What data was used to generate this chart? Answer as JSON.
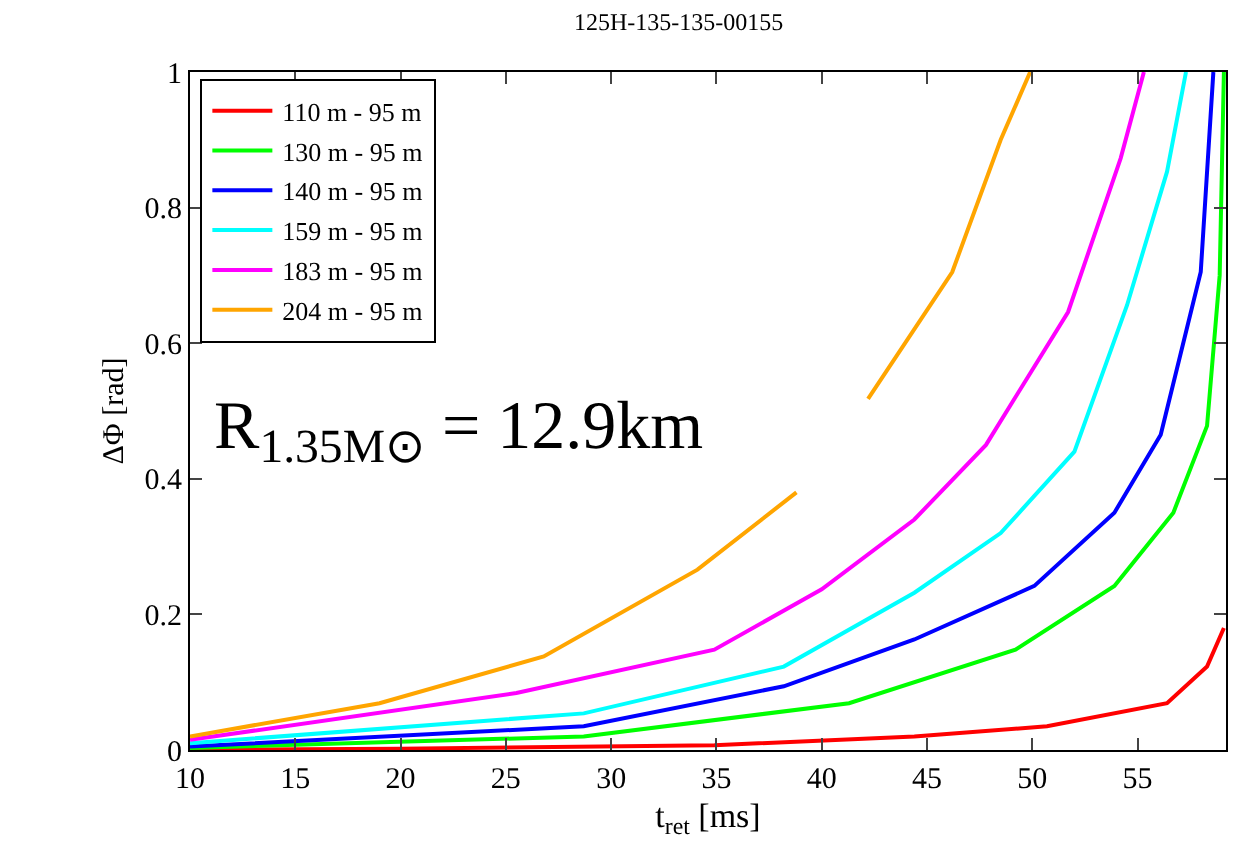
{
  "chart_data": {
    "type": "line",
    "title": "125H-135-135-00155",
    "xlabel": "t$_{ret}$ [ms]",
    "ylabel": "ΔΦ [rad]",
    "annotations": [
      "R$_{1.35M⊙}$ = 12.9km"
    ],
    "xlim": [
      10,
      59.2
    ],
    "xticks": [
      10,
      15,
      20,
      25,
      30,
      35,
      40,
      45,
      50,
      55
    ],
    "ylim": [
      0,
      1
    ],
    "yticks": [
      0,
      0.2,
      0.4,
      0.6,
      0.8,
      1
    ],
    "legend": "top left",
    "marker": "none",
    "line_style": "solid",
    "series": [
      {
        "name": "110 m - 95 m",
        "color": "#ff0000",
        "x": [
          10,
          20,
          34.9,
          44.4,
          50.7,
          56.4,
          58.3,
          59.1
        ],
        "values": [
          0,
          0.002,
          0.007,
          0.02,
          0.035,
          0.069,
          0.123,
          0.18
        ]
      },
      {
        "name": "130 m - 95 m",
        "color": "#00ff00",
        "x": [
          10,
          28.7,
          41.3,
          49.2,
          53.9,
          56.7,
          58.3,
          58.9,
          59.1
        ],
        "values": [
          0.003,
          0.02,
          0.069,
          0.148,
          0.242,
          0.35,
          0.478,
          0.7,
          1.0
        ]
      },
      {
        "name": "140 m - 95 m",
        "color": "#0000ff",
        "x": [
          10,
          28.7,
          38.2,
          44.4,
          50.1,
          53.9,
          56.1,
          58,
          58.6
        ],
        "values": [
          0.005,
          0.035,
          0.094,
          0.163,
          0.242,
          0.35,
          0.465,
          0.705,
          1.0
        ]
      },
      {
        "name": "159 m - 95 m",
        "color": "#00ffff",
        "x": [
          10,
          28.7,
          38.2,
          44.4,
          48.5,
          52,
          54.5,
          56.4,
          57.3
        ],
        "values": [
          0.01,
          0.054,
          0.123,
          0.232,
          0.32,
          0.44,
          0.656,
          0.853,
          1.0
        ]
      },
      {
        "name": "183 m - 95 m",
        "color": "#ff00ff",
        "x": [
          10,
          25.5,
          34.9,
          40,
          44.4,
          47.8,
          51.7,
          54.2,
          55.3
        ],
        "values": [
          0.015,
          0.084,
          0.148,
          0.237,
          0.34,
          0.45,
          0.646,
          0.873,
          1.0
        ]
      },
      {
        "name": "204 m - 95 m",
        "color": "#ffa500",
        "x": [
          10,
          19,
          26.8,
          34.1,
          38.8,
          40.5,
          42.2,
          46.2,
          48.5,
          49.9
        ],
        "values": [
          0.02,
          0.069,
          0.138,
          0.266,
          0.38,
          null,
          0.518,
          0.705,
          0.9,
          1.0
        ]
      }
    ]
  }
}
